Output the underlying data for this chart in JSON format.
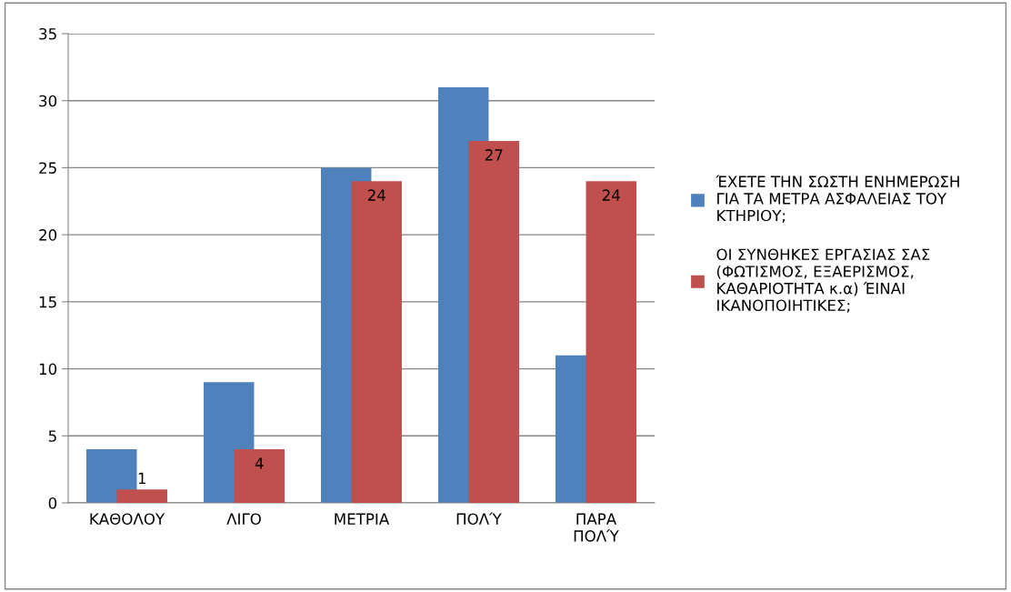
{
  "chart_data": {
    "type": "bar",
    "categories": [
      "ΚΑΘΟΛΟΥ",
      "ΛΙΓΟ",
      "ΜΕΤΡΙΑ",
      "ΠΟΛΎ",
      "ΠΑΡΑ ΠΟΛΎ"
    ],
    "series": [
      {
        "name": "ΈΧΕΤΕ ΤΗΝ ΣΩΣΤΗ ΕΝΗΜΕΡΩΣΗ ΓΙΑ ΤΑ ΜΕΤΡΑ ΑΣΦΑΛΕΙΑΣ ΤΟΥ ΚΤΗΡΙΟΥ;",
        "color": "#4f81bd",
        "values": [
          4,
          9,
          25,
          31,
          11
        ]
      },
      {
        "name": "ΟΙ ΣΥΝΘΗΚΕΣ ΕΡΓΑΣΙΑΣ ΣΑΣ (ΦΩΤΙΣΜΟΣ, ΕΞΑΕΡΙΣΜΟΣ, ΚΑΘΑΡΙΟΤΗΤΑ κ.α) ΈΙΝΑΙ ΙΚΑΝΟΠΟΙΗΤΙΚΕΣ;",
        "color": "#c0504d",
        "values": [
          1,
          4,
          24,
          27,
          24
        ],
        "value_labels": [
          "1",
          "4",
          "24",
          "27",
          "24"
        ]
      }
    ],
    "ylim": [
      0,
      35
    ],
    "yticks": [
      0,
      5,
      10,
      15,
      20,
      25,
      30,
      35
    ],
    "grid": "y",
    "legend": "right"
  }
}
